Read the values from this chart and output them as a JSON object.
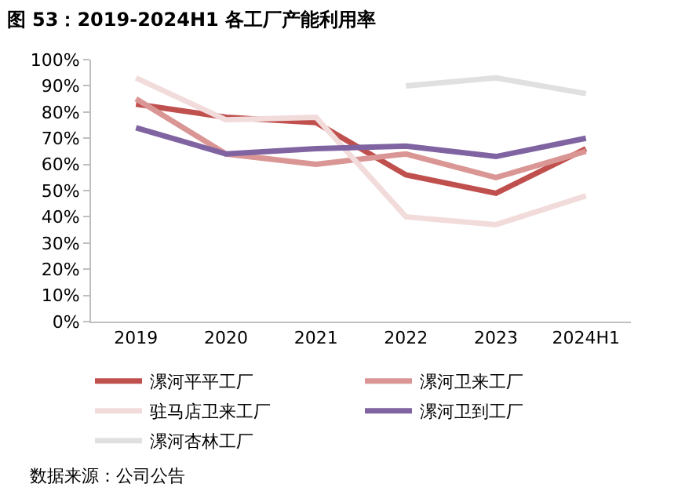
{
  "chart_data": {
    "type": "line",
    "title": "图 53：2019-2024H1 各工厂产能利用率",
    "categories": [
      "2019",
      "2020",
      "2021",
      "2022",
      "2023",
      "2024H1"
    ],
    "series": [
      {
        "name": "漯河平平工厂",
        "color": "#c0504d",
        "values": [
          83,
          78,
          76,
          56,
          49,
          66
        ]
      },
      {
        "name": "漯河卫来工厂",
        "color": "#d99694",
        "values": [
          85,
          64,
          60,
          64,
          55,
          65
        ]
      },
      {
        "name": "驻马店卫来工厂",
        "color": "#f2dcdb",
        "values": [
          93,
          77,
          78,
          40,
          37,
          48
        ]
      },
      {
        "name": "漯河卫到工厂",
        "color": "#8064a2",
        "values": [
          74,
          64,
          66,
          67,
          63,
          70
        ]
      },
      {
        "name": "漯河杏林工厂",
        "color": "#e0e0e0",
        "values": [
          null,
          null,
          null,
          90,
          93,
          87
        ]
      }
    ],
    "ylim": [
      0,
      100
    ],
    "yticks": [
      {
        "value": 0,
        "label": "0%"
      },
      {
        "value": 10,
        "label": "10%"
      },
      {
        "value": 20,
        "label": "20%"
      },
      {
        "value": 30,
        "label": "30%"
      },
      {
        "value": 40,
        "label": "40%"
      },
      {
        "value": 50,
        "label": "50%"
      },
      {
        "value": 60,
        "label": "60%"
      },
      {
        "value": 70,
        "label": "70%"
      },
      {
        "value": 80,
        "label": "80%"
      },
      {
        "value": 90,
        "label": "90%"
      },
      {
        "value": 100,
        "label": "100%"
      }
    ],
    "grid": false,
    "legend": "bottom",
    "marker": "none",
    "line_style": "solid",
    "annotations": [
      "数据来源：公司公告"
    ]
  }
}
